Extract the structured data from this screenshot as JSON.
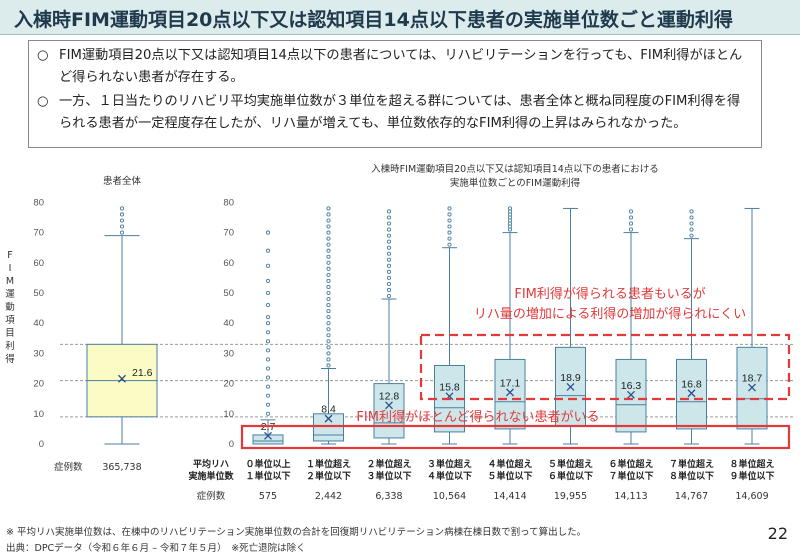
{
  "title": "入棟時FIM運動項目20点以下又は認知項目14点以下患者の実施単位数ごと運動利得",
  "bullets": [
    {
      "mark": "○",
      "text": "FIM運動項目20点以下又は認知項目14点以下の患者については、リハビリテーションを行っても、FIM利得がほとんど得られない患者が存在する。"
    },
    {
      "mark": "○",
      "text": "一方、１日当たりのリハビリ平均実施単位数が３単位を超える群については、患者全体と概ね同程度のFIM利得を得られる患者が一定程度存在したが、リハ量が増えても、単位数依存的なFIM利得の上昇はみられなかった。"
    }
  ],
  "y_axis_label": "FIM運動項目利得",
  "left_panel": {
    "title": "患者全体",
    "count_label": "症例数",
    "count": "365,738"
  },
  "right_panel": {
    "title_line1": "入棟時FIM運動項目20点以下又は認知項目14点以下の患者における",
    "title_line2": "実施単位数ごとのFIM運動利得"
  },
  "x_header": {
    "line1": "平均リハ",
    "line2": "実施単位数"
  },
  "count_label": "症例数",
  "annotations": {
    "upper_line1": "FIM利得が得られる患者もいるが",
    "upper_line2": "リハ量の増加による利得の増加が得られにくい",
    "lower": "FIM利得がほとんど得られない患者がいる"
  },
  "footnote1": "※ 平均リハ実施単位数は、在棟中のリハビリテーション実施単位数の合計を回復期リハビリテーション病棟在棟日数で割って算出した。",
  "footnote2": "出典：DPCデータ（令和６年６月 – 令和７年５月）　※死亡退院は除く",
  "page_number": "22",
  "colors": {
    "accent_red": "#e23a3a",
    "box_fill": "#cde6ea",
    "overall_box_fill": "#fbfbc6",
    "mean_marker": "#2b4f8a"
  },
  "chart_data": {
    "type": "boxplot",
    "ylabel": "FIM運動項目利得",
    "ylim": [
      0,
      80
    ],
    "yticks": [
      0,
      10,
      20,
      30,
      40,
      50,
      60,
      70,
      80
    ],
    "reference_lines": [
      9,
      21,
      33
    ],
    "overall": {
      "name": "患者全体",
      "q1": 9,
      "median": 21,
      "q3": 33,
      "whisker_low": 0,
      "whisker_high": 69,
      "mean": 21.6,
      "mean_label": "21.6",
      "count": "365,738",
      "outliers": [
        70,
        72,
        74,
        76,
        78
      ]
    },
    "groups": [
      {
        "line1": "０単位以上",
        "line2": "１単位以下",
        "count": "575",
        "q1": 0,
        "median": 1,
        "q3": 3,
        "whisker_low": 0,
        "whisker_high": 8,
        "mean": 2.7,
        "mean_label": "2.7",
        "outliers": [
          10,
          13,
          16,
          19,
          22,
          25,
          28,
          31,
          34,
          37,
          40,
          42,
          46,
          50,
          54,
          59,
          64,
          70
        ]
      },
      {
        "line1": "１単位超え",
        "line2": "２単位以下",
        "count": "2,442",
        "q1": 1,
        "median": 3,
        "q3": 10,
        "whisker_low": 0,
        "whisker_high": 25,
        "mean": 8.4,
        "mean_label": "8.4",
        "outliers": [
          26,
          28,
          30,
          32,
          34,
          36,
          38,
          40,
          42,
          44,
          46,
          48,
          50,
          52,
          54,
          56,
          58,
          60,
          62,
          64,
          66,
          68,
          70,
          72,
          74,
          76,
          78
        ]
      },
      {
        "line1": "２単位超え",
        "line2": "３単位以下",
        "count": "6,338",
        "q1": 2,
        "median": 7,
        "q3": 20,
        "whisker_low": 0,
        "whisker_high": 48,
        "mean": 12.8,
        "mean_label": "12.8",
        "outliers": [
          49,
          51,
          53,
          55,
          57,
          59,
          61,
          63,
          65,
          67,
          69,
          71,
          73,
          75,
          77
        ]
      },
      {
        "line1": "３単位超え",
        "line2": "４単位以下",
        "count": "10,564",
        "q1": 4,
        "median": 12,
        "q3": 26,
        "whisker_low": 0,
        "whisker_high": 65,
        "mean": 15.8,
        "mean_label": "15.8",
        "outliers": [
          66,
          68,
          70,
          72,
          74,
          76,
          78
        ]
      },
      {
        "line1": "４単位超え",
        "line2": "５単位以下",
        "count": "14,414",
        "q1": 5,
        "median": 14,
        "q3": 28,
        "whisker_low": 0,
        "whisker_high": 70,
        "mean": 17.1,
        "mean_label": "17.1",
        "outliers": [
          71,
          72,
          73,
          74,
          75,
          76,
          77,
          78
        ]
      },
      {
        "line1": "５単位超え",
        "line2": "６単位以下",
        "count": "19,955",
        "q1": 6,
        "median": 16,
        "q3": 32,
        "whisker_low": 0,
        "whisker_high": 78,
        "mean": 18.9,
        "mean_label": "18.9",
        "outliers": []
      },
      {
        "line1": "６単位超え",
        "line2": "７単位以下",
        "count": "14,113",
        "q1": 4,
        "median": 13,
        "q3": 28,
        "whisker_low": 0,
        "whisker_high": 70,
        "mean": 16.3,
        "mean_label": "16.3",
        "outliers": [
          71,
          73,
          75,
          77
        ]
      },
      {
        "line1": "７単位超え",
        "line2": "８単位以下",
        "count": "14,767",
        "q1": 5,
        "median": 14,
        "q3": 28,
        "whisker_low": 0,
        "whisker_high": 68,
        "mean": 16.8,
        "mean_label": "16.8",
        "outliers": [
          69,
          71,
          73,
          75,
          77
        ]
      },
      {
        "line1": "８単位超え",
        "line2": "９単位以下",
        "count": "14,609",
        "q1": 5,
        "median": 15,
        "q3": 32,
        "whisker_low": 0,
        "whisker_high": 78,
        "mean": 18.7,
        "mean_label": "18.7",
        "outliers": []
      }
    ]
  }
}
